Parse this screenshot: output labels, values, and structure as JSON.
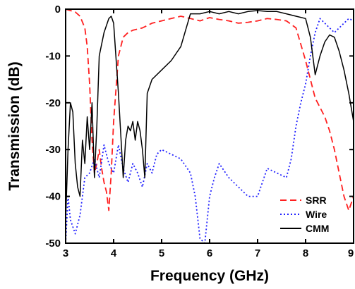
{
  "chart_data": {
    "type": "line",
    "xlabel": "Frequency (GHz)",
    "ylabel": "Transmission (dB)",
    "xlim": [
      3,
      9
    ],
    "ylim": [
      -50,
      0
    ],
    "xticks": [
      3,
      4,
      5,
      6,
      7,
      8,
      9
    ],
    "yticks": [
      0,
      -10,
      -20,
      -30,
      -40,
      -50
    ],
    "xtick_labels": [
      "3",
      "4",
      "5",
      "6",
      "7",
      "8",
      "9"
    ],
    "ytick_labels": [
      "0",
      "-10",
      "-20",
      "-30",
      "-40",
      "-50"
    ],
    "grid": false,
    "legend_position": "bottom-right",
    "series": [
      {
        "name": "SRR",
        "color": "#ff2020",
        "style": "dashed",
        "x": [
          3.0,
          3.1,
          3.2,
          3.3,
          3.4,
          3.45,
          3.5,
          3.55,
          3.6,
          3.65,
          3.7,
          3.75,
          3.8,
          3.85,
          3.9,
          3.95,
          4.0,
          4.1,
          4.2,
          4.3,
          4.4,
          4.6,
          4.8,
          5.0,
          5.2,
          5.4,
          5.6,
          5.8,
          6.0,
          6.2,
          6.4,
          6.6,
          6.8,
          7.0,
          7.2,
          7.4,
          7.6,
          7.8,
          8.0,
          8.1,
          8.2,
          8.3,
          8.4,
          8.5,
          8.6,
          8.7,
          8.8,
          8.9,
          9.0
        ],
        "y": [
          0,
          -0.3,
          -0.6,
          -1.5,
          -4,
          -8,
          -16,
          -28,
          -35,
          -33,
          -30,
          -34,
          -37,
          -39,
          -43,
          -35,
          -24,
          -10,
          -6,
          -5,
          -4.5,
          -4,
          -3,
          -2.5,
          -2,
          -1.5,
          -2,
          -2.5,
          -1.8,
          -2.2,
          -2.5,
          -3,
          -2.8,
          -2.5,
          -2,
          -2.2,
          -2.5,
          -4,
          -11,
          -15,
          -19,
          -21,
          -23,
          -26,
          -30,
          -35,
          -40,
          -43,
          -40
        ]
      },
      {
        "name": "Wire",
        "color": "#2020ff",
        "style": "dotted",
        "x": [
          3.0,
          3.05,
          3.1,
          3.2,
          3.3,
          3.4,
          3.5,
          3.6,
          3.7,
          3.8,
          3.9,
          4.0,
          4.1,
          4.2,
          4.3,
          4.4,
          4.5,
          4.6,
          4.7,
          4.8,
          4.9,
          5.0,
          5.2,
          5.4,
          5.6,
          5.7,
          5.8,
          5.9,
          6.0,
          6.1,
          6.2,
          6.4,
          6.6,
          6.8,
          7.0,
          7.2,
          7.4,
          7.6,
          7.7,
          7.8,
          7.9,
          8.0,
          8.1,
          8.2,
          8.3,
          8.4,
          8.5,
          8.6,
          8.7,
          8.8,
          8.9,
          9.0
        ],
        "y": [
          -50,
          -40,
          -45,
          -48,
          -44,
          -36,
          -35,
          -32,
          -36,
          -29,
          -33,
          -35,
          -29,
          -34,
          -37,
          -33,
          -35,
          -38,
          -33,
          -35,
          -31,
          -30,
          -31,
          -32,
          -35,
          -40,
          -49,
          -50,
          -40,
          -36,
          -33,
          -36,
          -38,
          -40,
          -40,
          -34,
          -35,
          -36,
          -32,
          -25,
          -20,
          -16,
          -10,
          -5,
          -2,
          -3,
          -4,
          -5,
          -4,
          -3,
          -2,
          -2.5
        ]
      },
      {
        "name": "CMM",
        "color": "#000000",
        "style": "solid",
        "x": [
          3.0,
          3.05,
          3.1,
          3.15,
          3.2,
          3.25,
          3.3,
          3.35,
          3.4,
          3.45,
          3.5,
          3.55,
          3.6,
          3.65,
          3.7,
          3.8,
          3.9,
          3.95,
          4.0,
          4.1,
          4.2,
          4.25,
          4.3,
          4.35,
          4.4,
          4.45,
          4.5,
          4.55,
          4.6,
          4.65,
          4.7,
          4.8,
          5.0,
          5.2,
          5.4,
          5.6,
          5.8,
          6.0,
          6.2,
          6.4,
          6.6,
          6.8,
          7.0,
          7.2,
          7.4,
          7.6,
          7.8,
          8.0,
          8.1,
          8.2,
          8.3,
          8.4,
          8.5,
          8.6,
          8.7,
          8.8,
          8.9,
          9.0
        ],
        "y": [
          -45,
          -30,
          -20,
          -22,
          -33,
          -38,
          -40,
          -28,
          -33,
          -23,
          -30,
          -20,
          -36,
          -25,
          -10,
          -5,
          -2,
          -1.5,
          -3,
          -18,
          -36,
          -28,
          -25,
          -26,
          -24,
          -28,
          -24,
          -26,
          -30,
          -36,
          -18,
          -15,
          -13,
          -11,
          -8,
          -1,
          -1,
          -0.5,
          -1,
          -0.5,
          -1,
          -0.5,
          -0.3,
          -0.5,
          -0.5,
          -1,
          -1.5,
          -2,
          -6,
          -14,
          -10,
          -7,
          -5.5,
          -6,
          -9,
          -13,
          -18,
          -24
        ]
      }
    ]
  }
}
